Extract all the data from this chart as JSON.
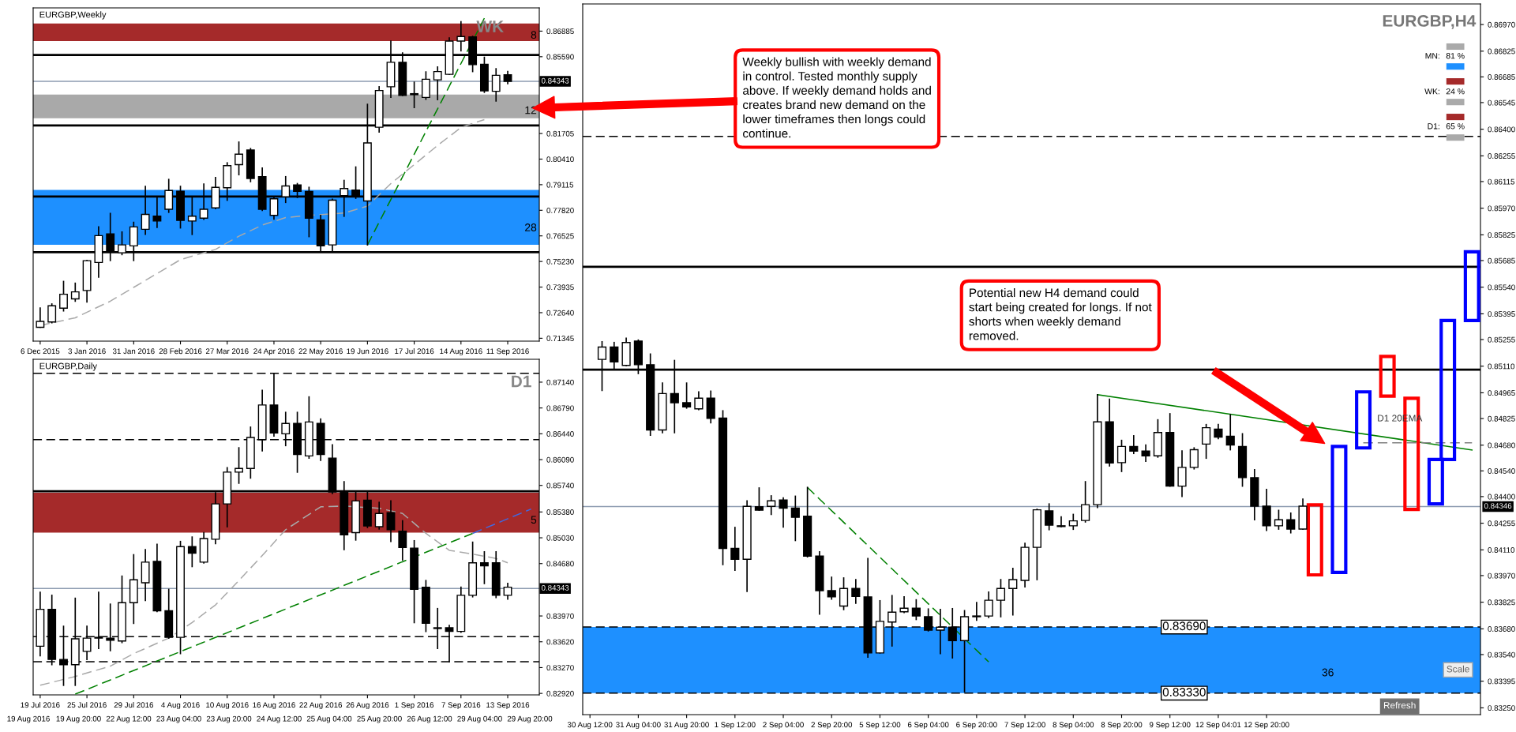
{
  "chart_data": [
    {
      "type": "candlestick",
      "title": "EURGBP,Weekly",
      "categories": [
        "6 Dec 2015",
        null,
        null,
        null,
        "3 Jan 2016",
        null,
        null,
        null,
        "31 Jan 2016",
        null,
        null,
        null,
        "28 Feb 2016",
        null,
        null,
        null,
        "27 Mar 2016",
        null,
        null,
        null,
        "24 Apr 2016",
        null,
        null,
        null,
        "22 May 2016",
        null,
        null,
        null,
        "19 Jun 2016",
        null,
        null,
        null,
        "17 Jul 2016",
        null,
        null,
        null,
        "14 Aug 2016",
        null,
        null,
        null,
        "11 Sep 2016",
        null,
        null
      ],
      "ohlc": [
        [
          0.719,
          0.7287,
          0.719,
          0.722
        ],
        [
          0.7217,
          0.7308,
          0.7213,
          0.7299
        ],
        [
          0.7287,
          0.7422,
          0.7273,
          0.7357
        ],
        [
          0.7334,
          0.7413,
          0.7322,
          0.7369
        ],
        [
          0.7376,
          0.7528,
          0.7318,
          0.7527
        ],
        [
          0.7518,
          0.7698,
          0.7444,
          0.7654
        ],
        [
          0.7663,
          0.7766,
          0.7528,
          0.7572
        ],
        [
          0.7567,
          0.7672,
          0.7558,
          0.7607
        ],
        [
          0.7602,
          0.7721,
          0.7528,
          0.7698
        ],
        [
          0.7686,
          0.7903,
          0.7661,
          0.7761
        ],
        [
          0.7752,
          0.7847,
          0.7696,
          0.7728
        ],
        [
          0.7787,
          0.7938,
          0.7772,
          0.7882
        ],
        [
          0.7878,
          0.7903,
          0.7693,
          0.7731
        ],
        [
          0.7728,
          0.785,
          0.766,
          0.7752
        ],
        [
          0.7742,
          0.7915,
          0.7737,
          0.7787
        ],
        [
          0.7794,
          0.7948,
          0.7791,
          0.7898
        ],
        [
          0.7896,
          0.8022,
          0.7833,
          0.8008
        ],
        [
          0.8013,
          0.8127,
          0.7962,
          0.8066
        ],
        [
          0.8087,
          0.8094,
          0.7927,
          0.7943
        ],
        [
          0.7952,
          0.7996,
          0.7782,
          0.7787
        ],
        [
          0.7756,
          0.7847,
          0.7738,
          0.784
        ],
        [
          0.785,
          0.7952,
          0.7822,
          0.7905
        ],
        [
          0.791,
          0.7917,
          0.7847,
          0.7878
        ],
        [
          0.7877,
          0.7898,
          0.7649,
          0.7742
        ],
        [
          0.7733,
          0.7756,
          0.7576,
          0.7602
        ],
        [
          0.7607,
          0.7838,
          0.7576,
          0.7833
        ],
        [
          0.7856,
          0.7933,
          0.7752,
          0.7892
        ],
        [
          0.7884,
          0.8001,
          0.7843,
          0.7854
        ],
        [
          0.7829,
          0.8318,
          0.7607,
          0.8123
        ],
        [
          0.8202,
          0.8407,
          0.8178,
          0.8388
        ],
        [
          0.8407,
          0.8638,
          0.8354,
          0.8531
        ],
        [
          0.8531,
          0.8578,
          0.8363,
          0.8363
        ],
        [
          0.8367,
          0.843,
          0.8302,
          0.8372
        ],
        [
          0.8353,
          0.8482,
          0.8344,
          0.8445
        ],
        [
          0.8442,
          0.8507,
          0.8342,
          0.8484
        ],
        [
          0.847,
          0.8654,
          0.847,
          0.8638
        ],
        [
          0.8638,
          0.8736,
          0.8589,
          0.8661
        ],
        [
          0.8659,
          0.8662,
          0.8484,
          0.8519
        ],
        [
          0.8521,
          0.8556,
          0.8379,
          0.8386
        ],
        [
          0.8384,
          0.8498,
          0.8335,
          0.8465
        ],
        [
          0.8468,
          0.8484,
          0.8423,
          0.8434
        ],
        null,
        null
      ],
      "series": [
        {
          "type": "line",
          "color": "#a9a9a9",
          "line_style": "dashed",
          "values": [
            0.7199,
            null,
            null,
            0.7238,
            null,
            null,
            0.7322,
            null,
            null,
            0.7427,
            null,
            null,
            0.7532,
            null,
            null,
            0.7584,
            null,
            0.7651,
            null,
            0.7707,
            null,
            0.7745,
            null,
            0.7756,
            null,
            null,
            0.7768,
            null,
            0.7803,
            null,
            0.7917,
            null,
            0.8013,
            null,
            0.811,
            null,
            0.8201,
            null,
            0.8241,
            null,
            null,
            null,
            null
          ]
        },
        {
          "type": "line",
          "color": "#008000",
          "line_style": "dashed",
          "values": [
            null,
            null,
            null,
            null,
            null,
            null,
            null,
            null,
            null,
            null,
            null,
            null,
            null,
            null,
            null,
            null,
            null,
            null,
            null,
            null,
            null,
            null,
            null,
            null,
            null,
            null,
            null,
            null,
            0.7607,
            null,
            null,
            null,
            null,
            null,
            null,
            null,
            null,
            null,
            0.8754,
            null,
            null,
            null,
            null
          ]
        }
      ],
      "ylim": [
        0.712,
        0.8806
      ],
      "yticks": [
        0.86885,
        {
          "value": 0.8559,
          "label": "0.85590"
        },
        0.81705,
        {
          "value": 0.8041,
          "label": "0.80410"
        },
        0.79115,
        {
          "value": 0.7782,
          "label": "0.77820"
        },
        0.76525,
        {
          "value": 0.7523,
          "label": "0.75230"
        },
        0.73935,
        {
          "value": 0.7264,
          "label": "0.72640"
        },
        0.71345
      ],
      "ref_lines": [
        {
          "axis": "y",
          "value": 0.8568,
          "color": "#000000",
          "line_style": "solid"
        },
        {
          "axis": "y",
          "value": 0.8211,
          "color": "#000000",
          "line_style": "solid"
        },
        {
          "axis": "y",
          "value": 0.7852,
          "color": "#000000",
          "line_style": "solid"
        },
        {
          "axis": "y",
          "value": 0.757,
          "color": "#000000",
          "line_style": "solid"
        },
        {
          "axis": "y",
          "value": 0.84343,
          "label": "0.84343",
          "color": "#8c9bb0",
          "line_style": "solid"
        }
      ],
      "bands": [
        {
          "axis": "y",
          "from": 0.8638,
          "to": 0.8727,
          "label": "8",
          "color": "#a52a2a"
        },
        {
          "axis": "y",
          "from": 0.8248,
          "to": 0.8368,
          "label": "12",
          "color": "#a9a9a9"
        },
        {
          "axis": "y",
          "from": 0.7607,
          "to": 0.7885,
          "label": "28",
          "color": "#1e90ff"
        }
      ],
      "annotations": [
        "WK"
      ]
    },
    {
      "type": "candlestick",
      "title": "EURGBP,Daily",
      "categories": [
        "19 Jul 2016",
        null,
        null,
        null,
        "25 Jul 2016",
        null,
        null,
        null,
        "29 Jul 2016",
        null,
        null,
        null,
        "4 Aug 2016",
        null,
        null,
        null,
        "10 Aug 2016",
        null,
        null,
        null,
        "16 Aug 2016",
        null,
        null,
        null,
        "22 Aug 2016",
        null,
        null,
        null,
        "26 Aug 2016",
        null,
        null,
        null,
        "1 Sep 2016",
        null,
        null,
        null,
        "7 Sep 2016",
        null,
        null,
        null,
        "13 Sep 2016",
        null,
        null
      ],
      "ohlc": [
        [
          0.8356,
          0.8429,
          0.8343,
          0.8406
        ],
        [
          0.8406,
          0.8425,
          0.8331,
          0.8338
        ],
        [
          0.8338,
          0.8383,
          0.8303,
          0.8331
        ],
        [
          0.8331,
          0.8421,
          0.8303,
          0.8366
        ],
        [
          0.8349,
          0.8383,
          0.8338,
          0.8367
        ],
        [
          0.8367,
          0.8429,
          0.8353,
          0.8368
        ],
        [
          0.8367,
          0.8413,
          0.835,
          0.8364
        ],
        [
          0.8363,
          0.8451,
          0.8361,
          0.8415
        ],
        [
          0.8415,
          0.848,
          0.8387,
          0.8446
        ],
        [
          0.8442,
          0.8487,
          0.8418,
          0.847
        ],
        [
          0.8471,
          0.8494,
          0.8403,
          0.8404
        ],
        [
          0.8404,
          0.8433,
          0.8367,
          0.8368
        ],
        [
          0.8368,
          0.8498,
          0.8346,
          0.8491
        ],
        [
          0.8491,
          0.8504,
          0.8464,
          0.8482
        ],
        [
          0.847,
          0.851,
          0.8469,
          0.8502
        ],
        [
          0.8501,
          0.8564,
          0.8495,
          0.8549
        ],
        [
          0.8549,
          0.8598,
          0.8518,
          0.8592
        ],
        [
          0.8592,
          0.8625,
          0.8577,
          0.8597
        ],
        [
          0.8597,
          0.8653,
          0.8584,
          0.8639
        ],
        [
          0.8636,
          0.8703,
          0.8621,
          0.8683
        ],
        [
          0.8683,
          0.8726,
          0.8641,
          0.8645
        ],
        [
          0.8644,
          0.8673,
          0.8628,
          0.8658
        ],
        [
          0.8658,
          0.8673,
          0.8592,
          0.8616
        ],
        [
          0.8614,
          0.8694,
          0.8611,
          0.866
        ],
        [
          0.8658,
          0.8664,
          0.8608,
          0.8616
        ],
        [
          0.8611,
          0.8629,
          0.8563,
          0.8565
        ],
        [
          0.8565,
          0.8579,
          0.8487,
          0.8507
        ],
        [
          0.851,
          0.8565,
          0.85,
          0.8553
        ],
        [
          0.8554,
          0.8565,
          0.8517,
          0.8519
        ],
        [
          0.8518,
          0.8551,
          0.8515,
          0.8536
        ],
        [
          0.8537,
          0.8553,
          0.8498,
          0.8514
        ],
        [
          0.8512,
          0.8526,
          0.8473,
          0.849
        ],
        [
          0.8489,
          0.8499,
          0.8388,
          0.8433
        ],
        [
          0.8436,
          0.8445,
          0.8376,
          0.8387
        ],
        [
          0.8381,
          0.8407,
          0.8353,
          0.838
        ],
        [
          0.8381,
          0.8384,
          0.8335,
          0.8376
        ],
        [
          0.8376,
          0.8436,
          0.8375,
          0.8425
        ],
        [
          0.8425,
          0.8497,
          0.8423,
          0.8469
        ],
        [
          0.8469,
          0.8484,
          0.8441,
          0.8465
        ],
        [
          0.8469,
          0.8484,
          0.8422,
          0.8425
        ],
        [
          0.8425,
          0.8441,
          0.842,
          0.8436
        ],
        null,
        null
      ],
      "series": [
        {
          "type": "line",
          "color": "#a9a9a9",
          "line_style": "dashed",
          "values": [
            0.8303,
            null,
            null,
            0.8315,
            null,
            null,
            0.8329,
            null,
            0.8346,
            null,
            null,
            0.8367,
            null,
            0.8388,
            null,
            0.8412,
            null,
            0.8445,
            null,
            0.8479,
            null,
            0.8514,
            null,
            null,
            0.8545,
            null,
            0.8546,
            null,
            null,
            0.8543,
            null,
            0.8536,
            null,
            0.8509,
            null,
            0.8486,
            null,
            0.8481,
            null,
            0.8475,
            0.8469,
            null,
            null
          ]
        },
        {
          "type": "line",
          "color": "#008000",
          "line_style": "dashed",
          "values": [
            null,
            null,
            null,
            0.8291,
            null,
            null,
            null,
            null,
            null,
            null,
            null,
            null,
            null,
            null,
            null,
            null,
            null,
            null,
            null,
            null,
            null,
            null,
            null,
            null,
            null,
            null,
            null,
            null,
            null,
            null,
            null,
            null,
            null,
            null,
            null,
            null,
            null,
            0.8509,
            null,
            null,
            null,
            null,
            null
          ]
        },
        {
          "type": "line",
          "color": "#4169e1",
          "line_style": "dashed",
          "values": [
            null,
            null,
            null,
            null,
            null,
            null,
            null,
            null,
            null,
            null,
            null,
            null,
            null,
            null,
            null,
            null,
            null,
            null,
            null,
            null,
            null,
            null,
            null,
            null,
            null,
            null,
            null,
            null,
            null,
            null,
            null,
            null,
            null,
            null,
            null,
            null,
            null,
            0.8509,
            null,
            null,
            null,
            null,
            0.8542
          ]
        }
      ],
      "ylim": [
        0.829,
        0.8745
      ],
      "yticks": [
        {
          "value": 0.8714,
          "label": "0.87140"
        },
        {
          "value": 0.8679,
          "label": "0.86790"
        },
        {
          "value": 0.8644,
          "label": "0.86440"
        },
        {
          "value": 0.8609,
          "label": "0.86090"
        },
        {
          "value": 0.8574,
          "label": "0.85740"
        },
        {
          "value": 0.8538,
          "label": "0.85380"
        },
        {
          "value": 0.8503,
          "label": "0.85030"
        },
        {
          "value": 0.8468,
          "label": "0.84680"
        },
        {
          "value": 0.8397,
          "label": "0.83970"
        },
        {
          "value": 0.8362,
          "label": "0.83620"
        },
        {
          "value": 0.8327,
          "label": "0.83270"
        },
        {
          "value": 0.8292,
          "label": "0.82920"
        }
      ],
      "ref_lines": [
        {
          "axis": "y",
          "value": 0.8566,
          "color": "#000000",
          "line_style": "solid"
        },
        {
          "axis": "y",
          "value": 0.8726,
          "color": "#000000",
          "line_style": "dashed"
        },
        {
          "axis": "y",
          "value": 0.8636,
          "color": "#000000",
          "line_style": "dashed"
        },
        {
          "axis": "y",
          "value": 0.8369,
          "color": "#000000",
          "line_style": "dashed"
        },
        {
          "axis": "y",
          "value": 0.8335,
          "color": "#000000",
          "line_style": "dashed"
        },
        {
          "axis": "y",
          "value": 0.84343,
          "label": "0.84343",
          "color": "#8c9bb0",
          "line_style": "solid"
        }
      ],
      "bands": [
        {
          "axis": "y",
          "from": 0.851,
          "to": 0.8564,
          "label": "5",
          "color": "#a52a2a"
        }
      ],
      "annotations": [
        "D1",
        "19 Aug 2016",
        "19 Aug 20:00",
        "22 Aug 12:00",
        "23 Aug 04:00",
        "23 Aug 20:00",
        "24 Aug 12:00",
        "25 Aug 04:00",
        "25 Aug 20:00",
        "26 Aug 12:00",
        "29 Aug 04:00",
        "29 Aug 20:00"
      ]
    },
    {
      "type": "candlestick",
      "title": "EURGBP,H4",
      "categories": [
        "30 Aug 12:00",
        null,
        null,
        null,
        "31 Aug 04:00",
        null,
        null,
        null,
        "31 Aug 20:00",
        null,
        null,
        null,
        "1 Sep 12:00",
        null,
        null,
        null,
        "2 Sep 04:00",
        null,
        null,
        null,
        "2 Sep 20:00",
        null,
        null,
        null,
        "5 Sep 12:00",
        null,
        null,
        null,
        "6 Sep 04:00",
        null,
        null,
        null,
        "6 Sep 20:00",
        null,
        null,
        null,
        "7 Sep 12:00",
        null,
        null,
        null,
        "8 Sep 04:00",
        null,
        null,
        null,
        "8 Sep 20:00",
        null,
        null,
        null,
        "9 Sep 12:00",
        null,
        null,
        null,
        "12 Sep 04:01",
        null,
        null,
        null,
        "12 Sep 20:00",
        null,
        null,
        null,
        null,
        null,
        null,
        null,
        null,
        null,
        null,
        null,
        null,
        null,
        null,
        null,
        null,
        null
      ],
      "ohlc": [
        null,
        [
          0.85147,
          0.85243,
          0.84978,
          0.85214
        ],
        [
          0.85214,
          0.85239,
          0.85099,
          0.85133
        ],
        [
          0.85114,
          0.85262,
          0.85114,
          0.85239
        ],
        [
          0.85247,
          0.85252,
          0.8507,
          0.85118
        ],
        [
          0.85118,
          0.85176,
          0.84734,
          0.84763
        ],
        [
          0.84763,
          0.85018,
          0.84748,
          0.84961
        ],
        [
          0.84961,
          0.85141,
          0.84748,
          0.84911
        ],
        [
          0.84911,
          0.85018,
          0.84882,
          0.84888
        ],
        [
          0.84878,
          0.8497,
          0.84874,
          0.84936
        ],
        [
          0.84936,
          0.84974,
          0.84802,
          0.84826
        ],
        [
          0.84828,
          0.84867,
          0.8403,
          0.84118
        ],
        [
          0.84118,
          0.84232,
          0.83999,
          0.84059
        ],
        [
          0.84059,
          0.84377,
          0.83884,
          0.84347
        ],
        [
          0.84345,
          0.84447,
          0.84326,
          0.84326
        ],
        [
          0.84347,
          0.84404,
          0.84303,
          0.84377
        ],
        [
          0.84381,
          0.84393,
          0.84234,
          0.84337
        ],
        [
          0.84337,
          0.84402,
          0.84161,
          0.84287
        ],
        [
          0.84293,
          0.8445,
          0.84072,
          0.84076
        ],
        [
          0.84076,
          0.84099,
          0.8376,
          0.83888
        ],
        [
          0.83888,
          0.83961,
          0.83842,
          0.83854
        ],
        [
          0.83804,
          0.83957,
          0.83785,
          0.839
        ],
        [
          0.839,
          0.83948,
          0.83819,
          0.83856
        ],
        [
          0.83854,
          0.84063,
          0.83526,
          0.83549
        ],
        [
          0.83549,
          0.83833,
          0.83549,
          0.83721
        ],
        [
          0.83717,
          0.83861,
          0.83587,
          0.83771
        ],
        [
          0.83773,
          0.83854,
          0.83769,
          0.83792
        ],
        [
          0.83792,
          0.83838,
          0.83731,
          0.8375
        ],
        [
          0.83746,
          0.83788,
          0.83669,
          0.83673
        ],
        [
          0.83673,
          0.83785,
          0.83545,
          0.83689
        ],
        [
          0.83689,
          0.8379,
          0.83522,
          0.83616
        ],
        [
          0.83616,
          0.83779,
          0.83338,
          0.83746
        ],
        [
          0.83746,
          0.83823,
          0.83727,
          0.8375
        ],
        [
          0.8375,
          0.8388,
          0.83742,
          0.83836
        ],
        [
          0.83836,
          0.83948,
          0.83746,
          0.839
        ],
        [
          0.839,
          0.84009,
          0.83756,
          0.83948
        ],
        [
          0.83944,
          0.84145,
          0.83909,
          0.84124
        ],
        [
          0.84124,
          0.84331,
          0.83948,
          0.84328
        ],
        [
          0.84322,
          0.8436,
          0.8422,
          0.84245
        ],
        [
          0.84241,
          0.84289,
          0.84236,
          0.84237
        ],
        [
          0.84241,
          0.84303,
          0.84222,
          0.84268
        ],
        [
          0.8427,
          0.84481,
          0.84262,
          0.84356
        ],
        [
          0.84356,
          0.84955,
          0.84341,
          0.84807
        ],
        [
          0.84807,
          0.8493,
          0.84567,
          0.84583
        ],
        [
          0.84585,
          0.84706,
          0.84537,
          0.84673
        ],
        [
          0.84673,
          0.84731,
          0.84635,
          0.84648
        ],
        [
          0.84648,
          0.84681,
          0.84592,
          0.84622
        ],
        [
          0.84622,
          0.84818,
          0.84615,
          0.84749
        ],
        [
          0.84749,
          0.84851,
          0.84457,
          0.84457
        ],
        [
          0.84457,
          0.84648,
          0.84401,
          0.84559
        ],
        [
          0.84559,
          0.84665,
          0.84551,
          0.84655
        ],
        [
          0.84686,
          0.84792,
          0.84609,
          0.84775
        ],
        [
          0.84767,
          0.84792,
          0.84716,
          0.84724
        ],
        [
          0.84729,
          0.84846,
          0.84655,
          0.84681
        ],
        [
          0.84673,
          0.84742,
          0.84457,
          0.84503
        ],
        [
          0.84503,
          0.84546,
          0.84274,
          0.84348
        ],
        [
          0.84348,
          0.84439,
          0.84216,
          0.84241
        ],
        [
          0.84241,
          0.84325,
          0.84223,
          0.84274
        ],
        [
          0.84274,
          0.8431,
          0.84203,
          0.84223
        ],
        [
          0.84223,
          0.84386,
          0.84223,
          0.84348
        ],
        null,
        null,
        null,
        null,
        null,
        null,
        null,
        null,
        null,
        null,
        null,
        null,
        null,
        null
      ],
      "series": [
        {
          "type": "line",
          "color": "#008000",
          "line_style": "dashed",
          "values": [
            null,
            null,
            null,
            null,
            null,
            null,
            null,
            null,
            null,
            null,
            null,
            null,
            null,
            null,
            null,
            null,
            null,
            null,
            0.8445,
            null,
            null,
            null,
            null,
            null,
            null,
            null,
            null,
            null,
            null,
            null,
            null,
            null,
            null,
            0.835,
            null,
            null,
            null,
            null,
            null,
            null,
            null,
            null,
            null,
            null,
            null,
            null,
            null,
            null,
            null,
            null,
            null,
            null,
            null,
            null,
            null,
            null,
            null,
            null,
            null,
            null,
            null,
            null,
            null,
            null,
            null,
            null,
            null,
            null,
            null,
            null,
            null,
            null,
            null,
            null
          ]
        },
        {
          "type": "line",
          "color": "#008000",
          "line_style": "solid",
          "values": [
            null,
            null,
            null,
            null,
            null,
            null,
            null,
            null,
            null,
            null,
            null,
            null,
            null,
            null,
            null,
            null,
            null,
            null,
            null,
            null,
            null,
            null,
            null,
            null,
            null,
            null,
            null,
            null,
            null,
            null,
            null,
            null,
            null,
            null,
            null,
            null,
            null,
            null,
            null,
            null,
            null,
            null,
            0.84955,
            null,
            null,
            null,
            null,
            null,
            null,
            null,
            null,
            null,
            null,
            null,
            null,
            null,
            null,
            null,
            null,
            null,
            null,
            null,
            null,
            null,
            null,
            null,
            null,
            null,
            null,
            null,
            null,
            null,
            null,
            0.84654
          ]
        },
        {
          "type": "line",
          "color": "#808080",
          "line_style": "dashed",
          "values": [
            null,
            null,
            null,
            null,
            null,
            null,
            null,
            null,
            null,
            null,
            null,
            null,
            null,
            null,
            null,
            null,
            null,
            null,
            null,
            null,
            null,
            null,
            null,
            null,
            null,
            null,
            null,
            null,
            null,
            null,
            null,
            null,
            null,
            null,
            null,
            null,
            null,
            null,
            null,
            null,
            null,
            null,
            null,
            null,
            null,
            null,
            null,
            null,
            null,
            null,
            null,
            null,
            null,
            null,
            null,
            null,
            null,
            null,
            null,
            null,
            null,
            null,
            null,
            null,
            0.84693,
            null,
            null,
            null,
            null,
            null,
            null,
            null,
            null,
            0.84693
          ]
        },
        {
          "type": "bar",
          "base": [
            null,
            null,
            null,
            null,
            null,
            null,
            null,
            null,
            null,
            null,
            null,
            null,
            null,
            null,
            null,
            null,
            null,
            null,
            null,
            null,
            null,
            null,
            null,
            null,
            null,
            null,
            null,
            null,
            null,
            null,
            null,
            null,
            null,
            null,
            null,
            null,
            null,
            null,
            null,
            null,
            null,
            null,
            null,
            null,
            null,
            null,
            null,
            null,
            null,
            null,
            null,
            null,
            null,
            null,
            null,
            null,
            null,
            null,
            null,
            null,
            0.83974,
            null,
            0.83987,
            null,
            0.84665,
            null,
            0.84947,
            null,
            0.8433,
            null,
            0.8436,
            0.84602,
            null,
            0.85359
          ],
          "values": [
            null,
            null,
            null,
            null,
            null,
            null,
            null,
            null,
            null,
            null,
            null,
            null,
            null,
            null,
            null,
            null,
            null,
            null,
            null,
            null,
            null,
            null,
            null,
            null,
            null,
            null,
            null,
            null,
            null,
            null,
            null,
            null,
            null,
            null,
            null,
            null,
            null,
            null,
            null,
            null,
            null,
            null,
            null,
            null,
            null,
            null,
            null,
            null,
            null,
            null,
            null,
            null,
            null,
            null,
            null,
            null,
            null,
            null,
            null,
            null,
            0.00381,
            null,
            0.00686,
            null,
            0.00305,
            null,
            0.00216,
            null,
            0.00605,
            null,
            0.00242,
            0.00757,
            null,
            0.00374
          ],
          "colors": [
            null,
            null,
            null,
            null,
            null,
            null,
            null,
            null,
            null,
            null,
            null,
            null,
            null,
            null,
            null,
            null,
            null,
            null,
            null,
            null,
            null,
            null,
            null,
            null,
            null,
            null,
            null,
            null,
            null,
            null,
            null,
            null,
            null,
            null,
            null,
            null,
            null,
            null,
            null,
            null,
            null,
            null,
            null,
            null,
            null,
            null,
            null,
            null,
            null,
            null,
            null,
            null,
            null,
            null,
            null,
            null,
            null,
            null,
            null,
            null,
            "#ff0000",
            null,
            "#0000ff",
            null,
            "#0000ff",
            null,
            "#ff0000",
            null,
            "#ff0000",
            null,
            "#0000ff",
            "#0000ff",
            null,
            "#0000ff"
          ]
        }
      ],
      "ylim": [
        0.83213,
        0.87082
      ],
      "yticks": [
        {
          "value": 0.8697,
          "label": "0.86970"
        },
        0.86825,
        0.86685,
        0.86545,
        {
          "value": 0.864,
          "label": "0.86400"
        },
        0.86255,
        0.86115,
        {
          "value": 0.8597,
          "label": "0.85970"
        },
        0.85825,
        0.85685,
        {
          "value": 0.8554,
          "label": "0.85540"
        },
        0.85395,
        0.85255,
        {
          "value": 0.8511,
          "label": "0.85110"
        },
        0.84965,
        0.84825,
        {
          "value": 0.8468,
          "label": "0.84680"
        },
        {
          "value": 0.8454,
          "label": "0.84540"
        },
        {
          "value": 0.844,
          "label": "0.84400"
        },
        0.84255,
        {
          "value": 0.8411,
          "label": "0.84110"
        },
        {
          "value": 0.8397,
          "label": "0.83970"
        },
        0.83825,
        {
          "value": 0.8368,
          "label": "0.83680"
        },
        {
          "value": 0.8354,
          "label": "0.83540"
        },
        0.83395,
        {
          "value": 0.8325,
          "label": "0.83250"
        }
      ],
      "ref_lines": [
        {
          "axis": "y",
          "value": 0.86361,
          "color": "#000000",
          "line_style": "dashed"
        },
        {
          "axis": "y",
          "value": 0.85651,
          "color": "#000000",
          "line_style": "solid"
        },
        {
          "axis": "y",
          "value": 0.85091,
          "color": "#000000",
          "line_style": "solid"
        },
        {
          "axis": "y",
          "value": 0.8369,
          "label": "0.83690",
          "color": "#000000",
          "line_style": "dashed"
        },
        {
          "axis": "y",
          "value": 0.8333,
          "label": "0.83330",
          "color": "#000000",
          "line_style": "dashed"
        },
        {
          "axis": "y",
          "value": 0.84346,
          "label": "0.84346",
          "color": "#8c9bb0",
          "line_style": "solid"
        }
      ],
      "bands": [
        {
          "axis": "y",
          "from": 0.8333,
          "to": 0.8369,
          "label": "36",
          "color": "#1e90ff"
        }
      ],
      "annotations": [
        "Weekly bullish with weekly demand\nin control. Tested monthly supply\nabove. If weekly demand holds and\ncreates brand new demand on the\nlower timeframes then longs could\ncontinue.",
        "Potential new H4 demand could\nstart being created for longs. If not\nshorts when weekly demand\nremoved.",
        "D1 20EMA",
        "MN:",
        "81 %",
        "WK:",
        "24 %",
        "D1:",
        "65 %",
        "Scale",
        "Refresh"
      ]
    }
  ]
}
